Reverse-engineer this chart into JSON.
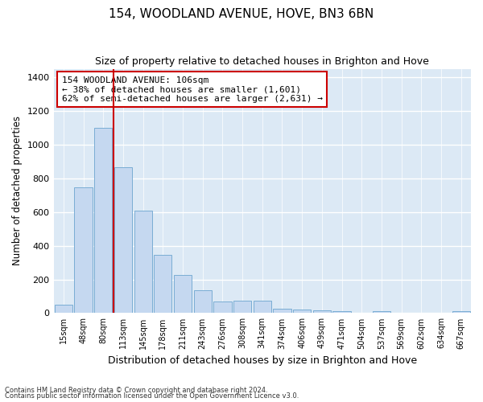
{
  "title": "154, WOODLAND AVENUE, HOVE, BN3 6BN",
  "subtitle": "Size of property relative to detached houses in Brighton and Hove",
  "xlabel": "Distribution of detached houses by size in Brighton and Hove",
  "ylabel": "Number of detached properties",
  "categories": [
    "15sqm",
    "48sqm",
    "80sqm",
    "113sqm",
    "145sqm",
    "178sqm",
    "211sqm",
    "243sqm",
    "276sqm",
    "308sqm",
    "341sqm",
    "374sqm",
    "406sqm",
    "439sqm",
    "471sqm",
    "504sqm",
    "537sqm",
    "569sqm",
    "602sqm",
    "634sqm",
    "667sqm"
  ],
  "values": [
    52,
    748,
    1100,
    868,
    610,
    345,
    225,
    135,
    68,
    75,
    75,
    28,
    20,
    18,
    12,
    0,
    12,
    0,
    0,
    0,
    12
  ],
  "bar_color": "#c5d8f0",
  "bar_edge_color": "#7aadd4",
  "background_color": "#dce9f5",
  "grid_color": "#ffffff",
  "property_line_color": "#cc0000",
  "property_line_x": 2.5,
  "annotation_text": "154 WOODLAND AVENUE: 106sqm\n← 38% of detached houses are smaller (1,601)\n62% of semi-detached houses are larger (2,631) →",
  "annotation_box_color": "#ffffff",
  "annotation_box_edge": "#cc0000",
  "ylim": [
    0,
    1450
  ],
  "yticks": [
    0,
    200,
    400,
    600,
    800,
    1000,
    1200,
    1400
  ],
  "footnote1": "Contains HM Land Registry data © Crown copyright and database right 2024.",
  "footnote2": "Contains public sector information licensed under the Open Government Licence v3.0."
}
